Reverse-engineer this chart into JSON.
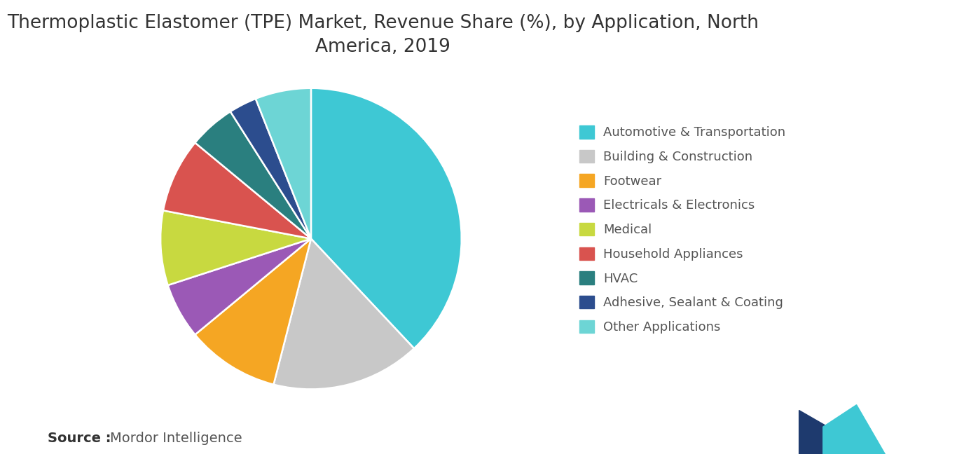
{
  "title": "Thermoplastic Elastomer (TPE) Market, Revenue Share (%), by Application, North\nAmerica, 2019",
  "segments": [
    {
      "label": "Automotive & Transportation",
      "value": 38,
      "color": "#3ec8d4"
    },
    {
      "label": "Building & Construction",
      "value": 16,
      "color": "#c8c8c8"
    },
    {
      "label": "Footwear",
      "value": 10,
      "color": "#f5a623"
    },
    {
      "label": "Electricals & Electronics",
      "value": 6,
      "color": "#9b59b6"
    },
    {
      "label": "Medical",
      "value": 8,
      "color": "#c8d940"
    },
    {
      "label": "Household Appliances",
      "value": 8,
      "color": "#d9534f"
    },
    {
      "label": "HVAC",
      "value": 5,
      "color": "#2a7f7f"
    },
    {
      "label": "Adhesive, Sealant & Coating",
      "value": 3,
      "color": "#2c4d8e"
    },
    {
      "label": "Other Applications",
      "value": 6,
      "color": "#6dd5d5"
    }
  ],
  "source_bold": "Source :",
  "source_text": "Mordor Intelligence",
  "bg_color": "#ffffff",
  "title_fontsize": 19,
  "legend_fontsize": 13,
  "source_fontsize": 14
}
